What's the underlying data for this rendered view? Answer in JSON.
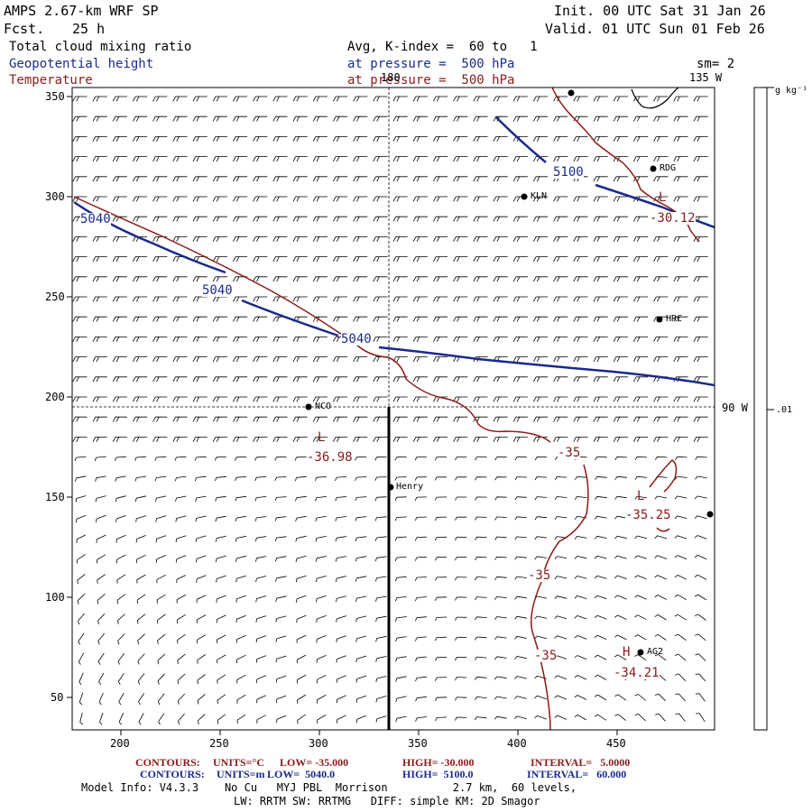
{
  "header": {
    "model": "AMPS 2.67-km WRF SP",
    "fcst_label": "Fcst.",
    "fcst_value": "25 h",
    "init": "Init. 00 UTC Sat 31 Jan 26",
    "valid": "Valid. 01 UTC Sun 01 Feb 26"
  },
  "fields": {
    "cloud": "Total cloud mixing ratio",
    "geopotential": "Geopotential height",
    "temperature": "Temperature",
    "avg_line": "Avg, K-index =  60 to   1",
    "pressure_line_1": "at pressure =  500 hPa",
    "pressure_line_2": "at pressure =  500 hPa",
    "smoothing": "sm= 2"
  },
  "axes": {
    "x_ticks": [
      "200",
      "250",
      "300",
      "350",
      "400",
      "450"
    ],
    "y_ticks": [
      "350",
      "300",
      "250",
      "200",
      "150",
      "100",
      "50"
    ],
    "lon_top": "180",
    "lon_right_top": "135 W",
    "lon_right_mid": "90 W"
  },
  "colorbar": {
    "units": "g kg⁻¹",
    "value": ".01"
  },
  "stations": [
    {
      "name": "RDG"
    },
    {
      "name": "KLN"
    },
    {
      "name": "HRC"
    },
    {
      "name": "NCO"
    },
    {
      "name": "Henry"
    },
    {
      "name": "AG2"
    }
  ],
  "contour_labels": {
    "height": [
      "5040",
      "5040",
      "5040",
      "5100"
    ],
    "temperature": [
      "-35",
      "-35",
      "-35",
      "-30.12",
      "-36.98",
      "-35.25",
      "-34.21"
    ],
    "markers": [
      "L",
      "L",
      "L",
      "H"
    ]
  },
  "footer": {
    "red_contours_label": "CONTOURS:",
    "red_units": "UNITS=°C",
    "red_low": "LOW= -35.000",
    "red_high": "HIGH= -30.000",
    "red_interval": "INTERVAL=   5.0000",
    "blue_contours_label": "CONTOURS:",
    "blue_units": "UNITS=m",
    "blue_low": "LOW=  5040.0",
    "blue_high": "HIGH=  5100.0",
    "blue_interval": "INTERVAL=   60.000",
    "model_info": "Model Info: V4.3.3    No Cu   MYJ PBL  Morrison          2.7 km,  60 levels,",
    "physics": "LW: RRTM SW: RRTMG   DIFF: simple KM: 2D Smagor"
  },
  "colors": {
    "height_contour": "#1a2a8c",
    "temperature_contour": "#8a1a1a",
    "barb": "#000000"
  }
}
